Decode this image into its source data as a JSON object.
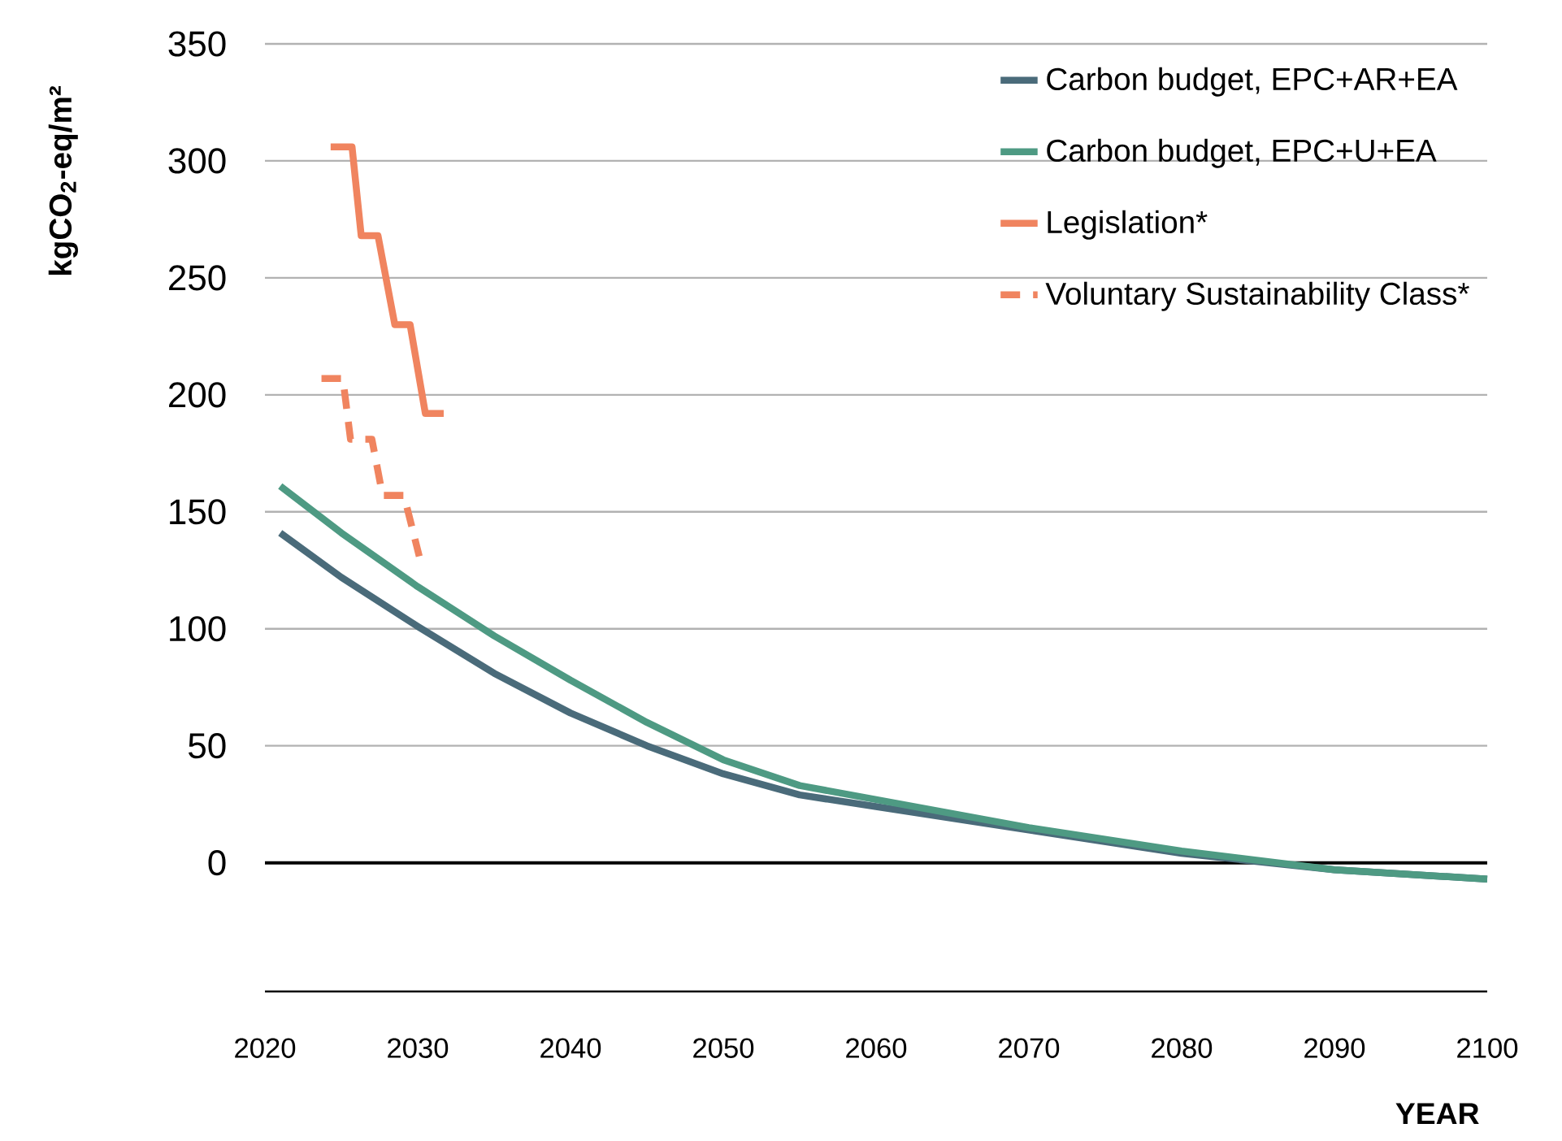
{
  "chart_data": {
    "type": "line",
    "xlabel": "YEAR",
    "ylabel": "kgCO$_{2}$-eq/m²",
    "xlim": [
      2020,
      2100
    ],
    "ylim": [
      -55,
      350
    ],
    "xticks": [
      2020,
      2030,
      2040,
      2050,
      2060,
      2070,
      2080,
      2090,
      2100
    ],
    "yticks": [
      0,
      50,
      100,
      150,
      200,
      250,
      300,
      350
    ],
    "grid": "y",
    "legend": "top right",
    "ref_lines": [
      {
        "axis": "y",
        "value": 0,
        "color": "#000000"
      }
    ],
    "series": [
      {
        "name": "Carbon budget, EPC+AR+EA",
        "color": "#4a6b7a",
        "line_style": "solid",
        "x": [
          2021,
          2025,
          2030,
          2035,
          2040,
          2045,
          2050,
          2055,
          2060,
          2070,
          2080,
          2090,
          2100
        ],
        "values": [
          141,
          122,
          101,
          81,
          64,
          50,
          38,
          29,
          24,
          14,
          4,
          -3,
          -7
        ]
      },
      {
        "name": "Carbon budget, EPC+U+EA",
        "color": "#4e9a83",
        "line_style": "solid",
        "x": [
          2021,
          2025,
          2030,
          2035,
          2040,
          2045,
          2050,
          2055,
          2060,
          2070,
          2080,
          2090,
          2100
        ],
        "values": [
          161,
          141,
          118,
          97,
          78,
          60,
          44,
          33,
          27,
          15,
          5,
          -3,
          -7
        ]
      },
      {
        "name": "Legislation*",
        "color": "#f0845f",
        "line_style": "solid",
        "x": [
          2024.3,
          2025.7,
          2026.3,
          2027.4,
          2028.5,
          2029.5,
          2030.5,
          2031.7
        ],
        "values": [
          306,
          306,
          268,
          268,
          230,
          230,
          192,
          192
        ]
      },
      {
        "name": "Voluntary Sustainability Class*",
        "color": "#f0845f",
        "line_style": "dashed",
        "x": [
          2023.7,
          2025.1,
          2025.6,
          2027.0,
          2027.7,
          2029.1,
          2030.1
        ],
        "values": [
          207,
          207,
          181,
          181,
          157,
          157,
          131
        ]
      }
    ]
  }
}
